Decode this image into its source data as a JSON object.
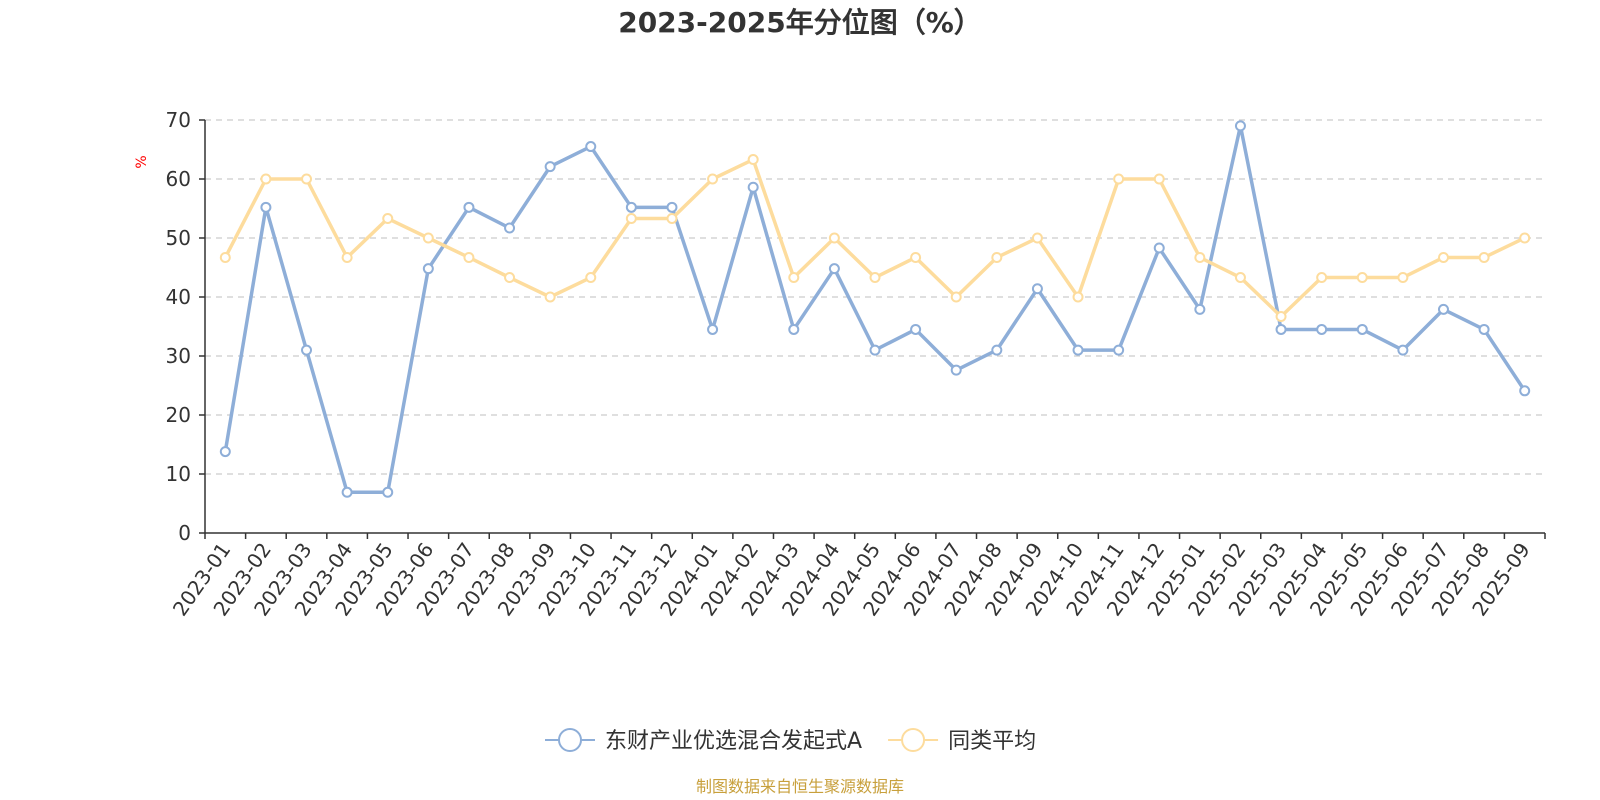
{
  "chart_data": {
    "type": "line",
    "title": "2023-2025年分位图（%）",
    "ylabel": "%",
    "ylim": [
      0,
      70
    ],
    "yticks": [
      0,
      10,
      20,
      30,
      40,
      50,
      60,
      70
    ],
    "grid": true,
    "legend_position": "bottom-center",
    "categories": [
      "2023-01",
      "2023-02",
      "2023-03",
      "2023-04",
      "2023-05",
      "2023-06",
      "2023-07",
      "2023-08",
      "2023-09",
      "2023-10",
      "2023-11",
      "2023-12",
      "2024-01",
      "2024-02",
      "2024-03",
      "2024-04",
      "2024-05",
      "2024-06",
      "2024-07",
      "2024-08",
      "2024-09",
      "2024-10",
      "2024-11",
      "2024-12",
      "2025-01",
      "2025-02",
      "2025-03",
      "2025-04",
      "2025-05",
      "2025-06",
      "2025-07",
      "2025-08",
      "2025-09"
    ],
    "series": [
      {
        "name": "东财产业优选混合发起式A",
        "color": "#8eaed8",
        "values": [
          13.8,
          55.2,
          31.0,
          6.9,
          6.9,
          44.8,
          55.2,
          51.7,
          62.1,
          65.5,
          55.2,
          55.2,
          34.5,
          58.6,
          34.5,
          44.8,
          31.0,
          34.5,
          27.6,
          31.0,
          41.4,
          31.0,
          31.0,
          48.3,
          37.9,
          69.0,
          34.5,
          34.5,
          34.5,
          31.0,
          37.9,
          34.5,
          24.1
        ]
      },
      {
        "name": "同类平均",
        "color": "#fddc9d",
        "values": [
          46.7,
          60.0,
          60.0,
          46.7,
          53.3,
          50.0,
          46.7,
          43.3,
          40.0,
          43.3,
          53.3,
          53.3,
          60.0,
          63.3,
          43.3,
          50.0,
          43.3,
          46.7,
          40.0,
          46.7,
          50.0,
          40.0,
          60.0,
          60.0,
          46.7,
          43.3,
          36.7,
          43.3,
          43.3,
          43.3,
          46.7,
          46.7,
          50.0
        ]
      }
    ]
  },
  "footer": {
    "source": "制图数据来自恒生聚源数据库",
    "source_color": "#c8a03c"
  },
  "unit_color": "#ff0000"
}
